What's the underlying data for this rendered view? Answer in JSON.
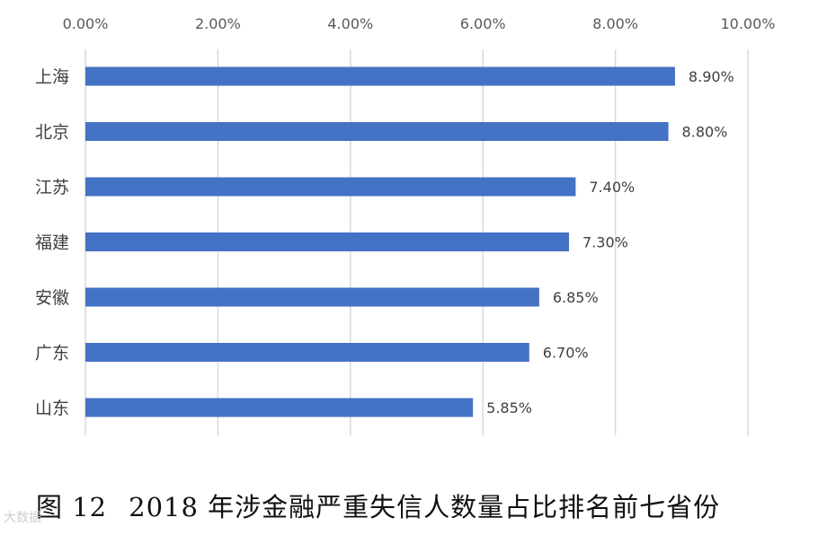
{
  "caption": {
    "figure_number": "图 12",
    "text": "2018 年涉金融严重失信人数量占比排名前七省份"
  },
  "watermark": "大数据",
  "colors": {
    "bar": "#4472C4",
    "grid": "#D9D9D9"
  },
  "chart_data": {
    "type": "bar",
    "orientation": "horizontal",
    "categories": [
      "上海",
      "北京",
      "江苏",
      "福建",
      "安徽",
      "广东",
      "山东"
    ],
    "values": [
      8.9,
      8.8,
      7.4,
      7.3,
      6.85,
      6.7,
      5.85
    ],
    "value_labels": [
      "8.90%",
      "8.80%",
      "7.40%",
      "7.30%",
      "6.85%",
      "6.70%",
      "5.85%"
    ],
    "xlim": [
      0,
      10
    ],
    "x_ticks": [
      0,
      2,
      4,
      6,
      8,
      10
    ],
    "x_tick_labels": [
      "0.00%",
      "2.00%",
      "4.00%",
      "6.00%",
      "8.00%",
      "10.00%"
    ],
    "x_axis_position": "top",
    "grid": true,
    "legend": "none"
  }
}
